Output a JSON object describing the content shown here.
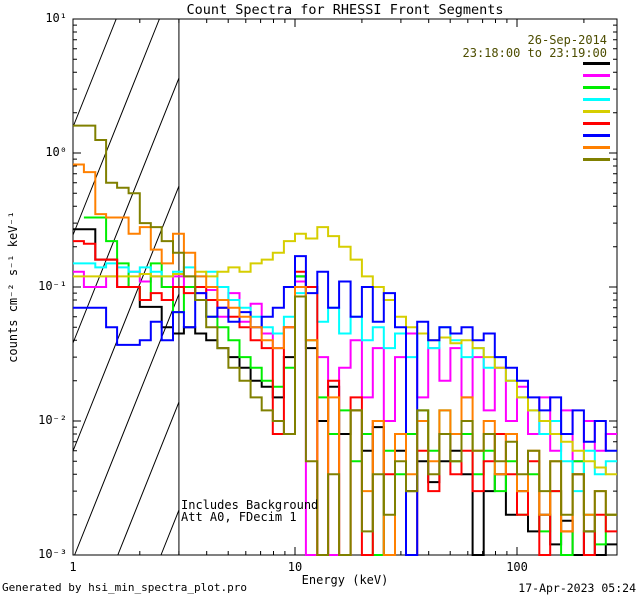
{
  "title": "Count Spectra for RHESSI Front Segments",
  "annotations": {
    "date": "26-Sep-2014",
    "time_range": "23:18:00 to 23:19:00",
    "note_line1": "Includes Background",
    "note_line2": "Att A0, FDecim 1"
  },
  "footer": {
    "left": "Generated by hsi_min_spectra_plot.pro",
    "right": "17-Apr-2023 05:24"
  },
  "colors": {
    "axis": "#000000",
    "background": "#ffffff",
    "date_text": "#4d4d00"
  },
  "chart_data": {
    "type": "line",
    "subtype": "histogram-staircase-spectra",
    "title": "Count Spectra for RHESSI Front Segments",
    "xlabel": "Energy (keV)",
    "ylabel": "counts cm⁻² s⁻¹ keV⁻¹",
    "x_scale": "log",
    "y_scale": "log",
    "xlim": [
      1,
      282
    ],
    "ylim": [
      0.001,
      10
    ],
    "grid": false,
    "legend_position": "top-right",
    "hatched_region_kev": [
      1,
      3
    ],
    "x_ticks": [
      {
        "value": 1,
        "label": "1"
      },
      {
        "value": 10,
        "label": "10"
      },
      {
        "value": 100,
        "label": "100"
      }
    ],
    "y_ticks": [
      {
        "value": 10,
        "label": "10¹"
      },
      {
        "value": 1,
        "label": "10⁰"
      },
      {
        "value": 0.1,
        "label": "10⁻¹"
      },
      {
        "value": 0.01,
        "label": "10⁻²"
      },
      {
        "value": 0.001,
        "label": "10⁻³"
      }
    ],
    "bin_edges_kev": [
      1.0,
      1.12,
      1.26,
      1.41,
      1.58,
      1.78,
      2.0,
      2.24,
      2.51,
      2.82,
      3.16,
      3.55,
      3.98,
      4.47,
      5.01,
      5.62,
      6.31,
      7.08,
      7.94,
      8.91,
      10.0,
      11.2,
      12.6,
      14.1,
      15.8,
      17.8,
      20.0,
      22.4,
      25.1,
      28.2,
      31.6,
      35.5,
      39.8,
      44.7,
      50.1,
      56.2,
      63.1,
      70.8,
      79.4,
      89.1,
      100,
      112,
      126,
      141,
      158,
      178,
      200,
      224,
      251,
      282
    ],
    "series": [
      {
        "name": "1F",
        "color": "#000000",
        "values": [
          0.27,
          0.27,
          0.16,
          0.16,
          0.1,
          0.1,
          0.071,
          0.071,
          0.05,
          0.045,
          0.05,
          0.045,
          0.04,
          0.035,
          0.03,
          0.025,
          0.02,
          0.018,
          0.015,
          0.03,
          0.12,
          0.035,
          0.01,
          0.018,
          0.008,
          0.012,
          0.006,
          0.009,
          0.001,
          0.006,
          0.003,
          0.005,
          0.0035,
          0.005,
          0.006,
          0.004,
          0.001,
          0.003,
          0.004,
          0.002,
          0.003,
          0.0015,
          0.002,
          0.0012,
          0.0018,
          0.001,
          0.0015,
          0.001,
          0.0012
        ]
      },
      {
        "name": "2F",
        "color": "#ff00ff",
        "values": [
          0.13,
          0.1,
          0.1,
          0.12,
          0.1,
          0.13,
          0.11,
          0.12,
          0.1,
          0.12,
          0.1,
          0.09,
          0.095,
          0.06,
          0.09,
          0.055,
          0.075,
          0.045,
          0.035,
          0.05,
          0.11,
          0.001,
          0.03,
          0.001,
          0.025,
          0.04,
          0.015,
          0.035,
          0.01,
          0.03,
          0.045,
          0.015,
          0.035,
          0.02,
          0.035,
          0.015,
          0.03,
          0.012,
          0.025,
          0.01,
          0.018,
          0.008,
          0.015,
          0.006,
          0.012,
          0.005,
          0.01,
          0.006,
          0.008
        ]
      },
      {
        "name": "3F",
        "color": "#00ee00",
        "values": [
          null,
          0.33,
          0.33,
          0.22,
          0.15,
          0.1,
          0.08,
          0.15,
          0.1,
          0.065,
          0.1,
          0.08,
          0.06,
          0.05,
          0.04,
          0.03,
          0.025,
          0.02,
          0.018,
          0.025,
          0.12,
          0.04,
          0.015,
          0.008,
          0.012,
          0.005,
          0.008,
          0.001,
          0.006,
          0.004,
          0.008,
          0.012,
          0.006,
          0.012,
          0.005,
          0.008,
          0.004,
          0.006,
          0.003,
          0.005,
          0.002,
          0.004,
          0.0015,
          0.003,
          0.001,
          0.005,
          0.002,
          0.0012,
          0.002
        ]
      },
      {
        "name": "4F",
        "color": "#00ffff",
        "values": [
          0.15,
          0.15,
          0.14,
          0.15,
          0.14,
          0.13,
          0.14,
          0.13,
          0.12,
          0.13,
          0.14,
          0.12,
          0.13,
          0.1,
          0.08,
          0.07,
          0.06,
          0.05,
          0.045,
          0.06,
          0.09,
          0.1,
          0.055,
          0.07,
          0.045,
          0.06,
          0.04,
          0.05,
          0.035,
          0.045,
          0.03,
          0.045,
          0.035,
          0.05,
          0.04,
          0.03,
          0.035,
          0.025,
          0.03,
          0.02,
          0.015,
          0.012,
          0.008,
          0.01,
          0.005,
          0.003,
          0.006,
          0.004,
          0.005
        ]
      },
      {
        "name": "5F",
        "color": "#d6ce00",
        "values": [
          0.12,
          0.12,
          0.12,
          0.12,
          0.12,
          0.12,
          0.125,
          0.12,
          0.12,
          0.125,
          0.12,
          0.13,
          0.12,
          0.13,
          0.14,
          0.13,
          0.15,
          0.16,
          0.18,
          0.22,
          0.25,
          0.23,
          0.28,
          0.24,
          0.2,
          0.16,
          0.12,
          0.1,
          0.08,
          0.06,
          0.05,
          0.045,
          0.04,
          0.042,
          0.038,
          0.04,
          0.035,
          0.03,
          0.025,
          0.02,
          0.015,
          0.012,
          0.01,
          0.008,
          0.007,
          0.006,
          0.005,
          0.0045,
          0.004
        ]
      },
      {
        "name": "6F",
        "color": "#ff0000",
        "values": [
          0.22,
          0.21,
          0.16,
          0.16,
          0.1,
          0.1,
          0.08,
          0.09,
          0.08,
          0.1,
          0.09,
          0.1,
          0.08,
          0.07,
          0.06,
          0.05,
          0.04,
          0.035,
          0.008,
          0.05,
          0.13,
          0.1,
          0.001,
          0.02,
          0.001,
          0.015,
          0.001,
          0.01,
          0.004,
          0.008,
          0.001,
          0.006,
          0.003,
          0.008,
          0.004,
          0.006,
          0.003,
          0.005,
          0.008,
          0.004,
          0.002,
          0.005,
          0.001,
          0.003,
          0.0015,
          0.004,
          0.001,
          0.002,
          0.0015
        ]
      },
      {
        "name": "7F",
        "color": "#0000ff",
        "values": [
          0.07,
          0.07,
          0.07,
          0.05,
          0.037,
          0.037,
          0.04,
          0.055,
          0.04,
          0.065,
          0.05,
          0.09,
          0.06,
          0.07,
          0.055,
          0.065,
          0.05,
          0.06,
          0.07,
          0.1,
          0.17,
          0.09,
          0.13,
          0.07,
          0.11,
          0.06,
          0.1,
          0.055,
          0.09,
          0.05,
          0.001,
          0.055,
          0.04,
          0.05,
          0.045,
          0.05,
          0.04,
          0.045,
          0.03,
          0.025,
          0.02,
          0.015,
          0.012,
          0.015,
          0.008,
          0.012,
          0.007,
          0.01,
          0.006
        ]
      },
      {
        "name": "8F",
        "color": "#ff8000",
        "values": [
          0.82,
          0.72,
          0.35,
          0.33,
          0.33,
          0.25,
          0.28,
          0.19,
          0.15,
          0.25,
          0.18,
          0.12,
          0.1,
          0.08,
          0.07,
          0.06,
          0.05,
          0.04,
          0.035,
          0.05,
          0.1,
          0.04,
          0.001,
          0.015,
          0.001,
          0.012,
          0.003,
          0.01,
          0.001,
          0.008,
          0.004,
          0.01,
          0.005,
          0.012,
          0.008,
          0.015,
          0.006,
          0.01,
          0.004,
          0.008,
          0.003,
          0.006,
          0.002,
          0.005,
          0.0015,
          0.004,
          0.002,
          0.003,
          0.002
        ]
      },
      {
        "name": "9F",
        "color": "#808000",
        "values": [
          1.6,
          1.6,
          1.25,
          0.6,
          0.55,
          0.5,
          0.3,
          0.28,
          0.22,
          0.18,
          0.12,
          0.08,
          0.05,
          0.035,
          0.025,
          0.02,
          0.015,
          0.012,
          0.01,
          0.008,
          0.085,
          0.005,
          0.001,
          0.004,
          0.001,
          0.012,
          0.0015,
          0.004,
          0.002,
          0.005,
          0.003,
          0.012,
          0.004,
          0.008,
          0.005,
          0.01,
          0.006,
          0.008,
          0.005,
          0.007,
          0.004,
          0.006,
          0.003,
          0.005,
          0.002,
          0.004,
          0.0015,
          0.003,
          0.002
        ]
      }
    ]
  }
}
